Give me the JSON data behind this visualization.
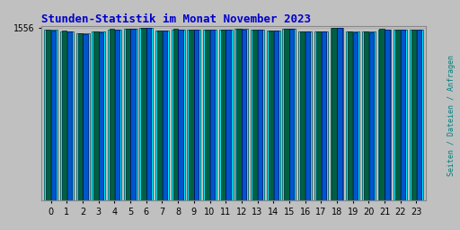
{
  "title": "Stunden-Statistik im Monat November 2023",
  "title_color": "#0000CC",
  "ylabel": "Seiten / Dateien / Anfragen",
  "ylabel_color": "#008080",
  "background_color": "#C0C0C0",
  "plot_bg_color": "#C0C0C0",
  "hours": [
    0,
    1,
    2,
    3,
    4,
    5,
    6,
    7,
    8,
    9,
    10,
    11,
    12,
    13,
    14,
    15,
    16,
    17,
    18,
    19,
    20,
    21,
    22,
    23
  ],
  "seiten": [
    1537,
    1527,
    1510,
    1522,
    1544,
    1549,
    1557,
    1531,
    1544,
    1541,
    1541,
    1543,
    1545,
    1539,
    1531,
    1549,
    1526,
    1523,
    1557,
    1521,
    1521,
    1544,
    1539,
    1539
  ],
  "dateien": [
    1536,
    1526,
    1505,
    1519,
    1542,
    1548,
    1556,
    1530,
    1543,
    1540,
    1540,
    1542,
    1544,
    1538,
    1530,
    1548,
    1525,
    1522,
    1556,
    1520,
    1520,
    1543,
    1538,
    1538
  ],
  "anfragen": [
    1534,
    1524,
    1502,
    1517,
    1540,
    1546,
    1554,
    1528,
    1541,
    1538,
    1538,
    1540,
    1543,
    1536,
    1528,
    1546,
    1523,
    1520,
    1555,
    1518,
    1518,
    1541,
    1536,
    1536
  ],
  "color_seiten": "#006040",
  "color_dateien": "#00EEFF",
  "color_anfragen": "#0055CC",
  "ylim_min": 0,
  "ylim_max": 1570,
  "ytick_label": "1556",
  "ytick_value": 1556,
  "bar_width": 0.3,
  "gridcolor": "#AAAAAA",
  "title_fontsize": 9,
  "tick_fontsize": 7,
  "ylabel_fontsize": 6
}
